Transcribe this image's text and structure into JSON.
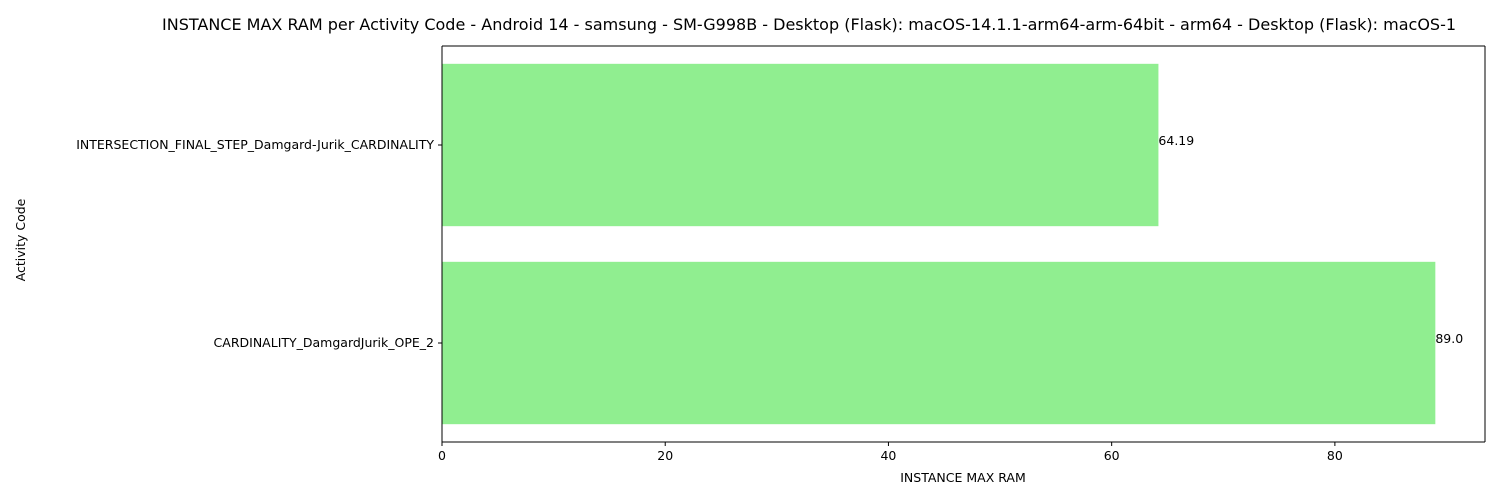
{
  "chart_data": {
    "type": "bar",
    "orientation": "horizontal",
    "title": "INSTANCE MAX RAM per Activity Code - Android 14 - samsung - SM-G998B - Desktop (Flask): macOS-14.1.1-arm64-arm-64bit - arm64 - Desktop (Flask): macOS-1",
    "xlabel": "INSTANCE MAX RAM",
    "ylabel": "Activity Code",
    "categories": [
      "INTERSECTION_FINAL_STEP_Damgard-Jurik_CARDINALITY",
      "CARDINALITY_DamgardJurik_OPE_2"
    ],
    "values": [
      64.19,
      89.0
    ],
    "data_labels": [
      "64.19",
      "89.0"
    ],
    "xlim": [
      0,
      93.45
    ],
    "xticks": [
      0,
      20,
      40,
      60,
      80
    ],
    "xtick_labels": [
      "0",
      "20",
      "40",
      "60",
      "80"
    ],
    "bar_color": "#90ee90",
    "grid": false,
    "legend": false
  }
}
